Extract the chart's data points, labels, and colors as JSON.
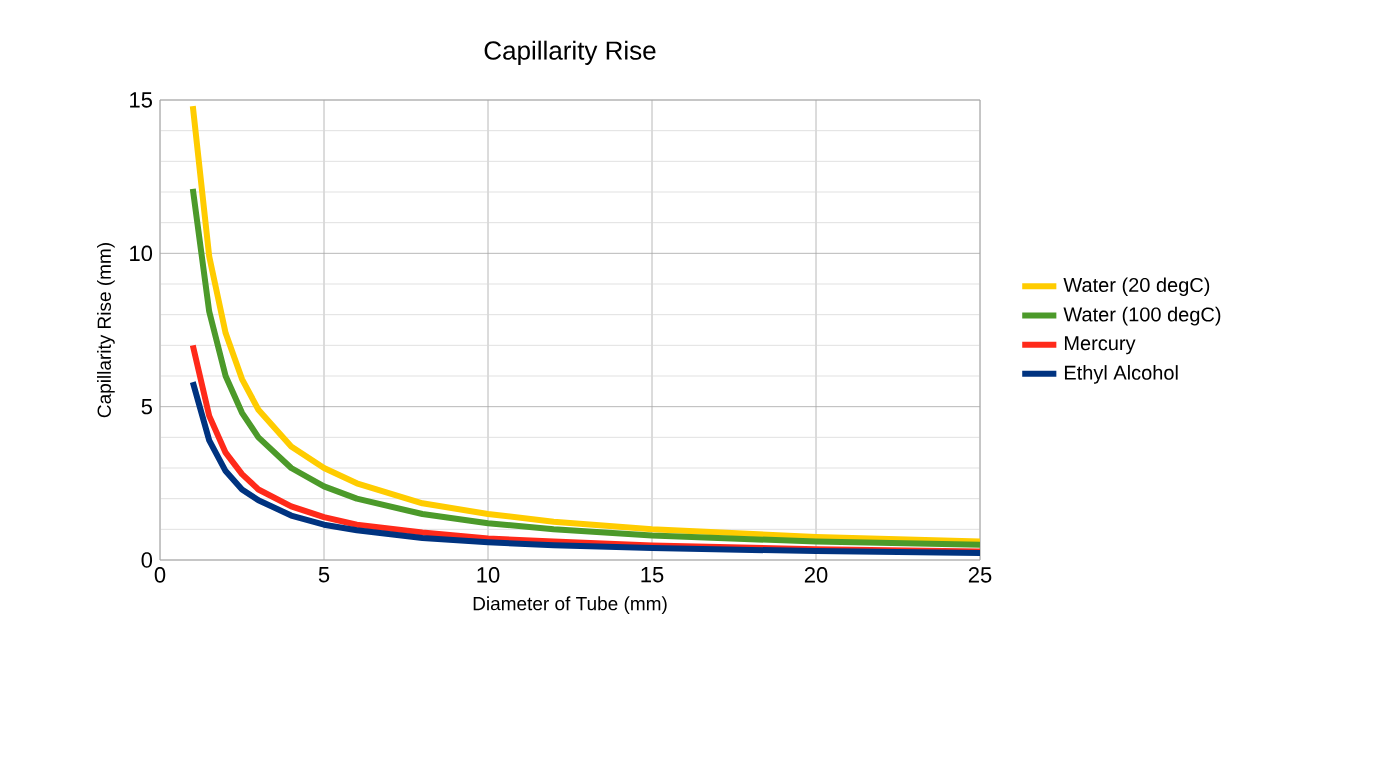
{
  "chart_data": {
    "type": "line",
    "title": "Capillarity Rise",
    "xlabel": "Diameter of Tube (mm)",
    "ylabel": "Capillarity   Rise   (mm)",
    "x": [
      1,
      1.5,
      2,
      2.5,
      3,
      4,
      5,
      6,
      8,
      10,
      12,
      15,
      20,
      25
    ],
    "series": [
      {
        "name": "Water (20 degC)",
        "color": "#ffcc00",
        "values": [
          14.8,
          9.9,
          7.4,
          5.9,
          4.9,
          3.7,
          3.0,
          2.5,
          1.85,
          1.5,
          1.25,
          1.0,
          0.75,
          0.6
        ]
      },
      {
        "name": "Water (100 degC)",
        "color": "#4c9a2a",
        "values": [
          12.1,
          8.1,
          6.0,
          4.8,
          4.0,
          3.0,
          2.4,
          2.0,
          1.5,
          1.2,
          1.0,
          0.8,
          0.6,
          0.5
        ]
      },
      {
        "name": "Mercury",
        "color": "#ff2a1a",
        "values": [
          7.0,
          4.7,
          3.5,
          2.8,
          2.3,
          1.75,
          1.4,
          1.15,
          0.9,
          0.7,
          0.6,
          0.47,
          0.35,
          0.28
        ]
      },
      {
        "name": "Ethyl Alcohol",
        "color": "#003380",
        "values": [
          5.8,
          3.9,
          2.9,
          2.3,
          1.95,
          1.45,
          1.15,
          0.97,
          0.72,
          0.58,
          0.48,
          0.39,
          0.29,
          0.23
        ]
      }
    ],
    "xlim": [
      0,
      25
    ],
    "ylim": [
      0,
      15
    ],
    "xticks": [
      0,
      5,
      10,
      15,
      20,
      25
    ],
    "yticks": [
      0,
      5,
      10,
      15
    ],
    "grid": true,
    "legend": "right",
    "marker": "none",
    "line_style": "solid"
  }
}
